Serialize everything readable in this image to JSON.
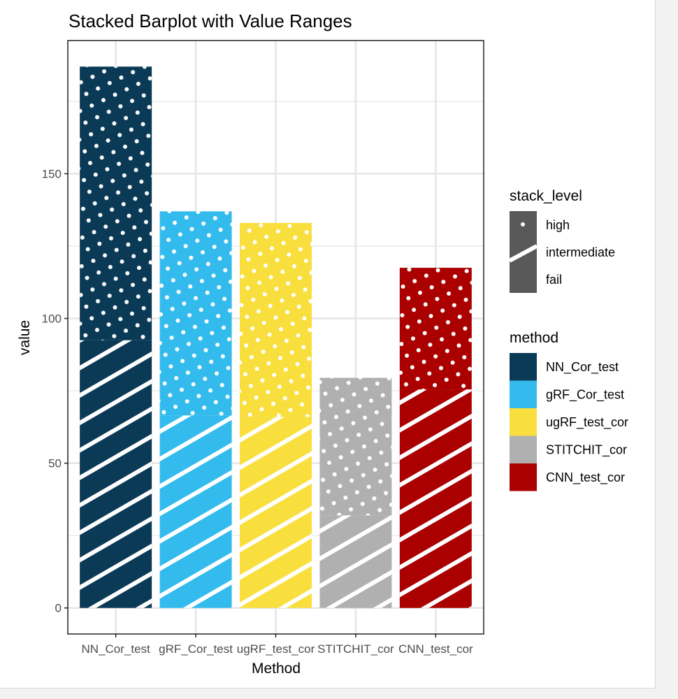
{
  "chart_data": {
    "type": "bar",
    "stacked": true,
    "title": "Stacked Barplot with Value Ranges",
    "xlabel": "Method",
    "ylabel": "value",
    "categories": [
      "NN_Cor_test",
      "gRF_Cor_test",
      "ugRF_test_cor",
      "STITCHIT_cor",
      "CNN_test_cor"
    ],
    "category_colors": [
      "#0B3A57",
      "#33BBEE",
      "#F9DF3D",
      "#B0B0B0",
      "#AA0000"
    ],
    "series": [
      {
        "name": "fail",
        "pattern": "none",
        "values": [
          0,
          0,
          0,
          0,
          0
        ]
      },
      {
        "name": "intermediate",
        "pattern": "stripe",
        "values": [
          92.5,
          66.5,
          66,
          32,
          75.5
        ]
      },
      {
        "name": "high",
        "pattern": "circle",
        "values": [
          94.5,
          70.5,
          67,
          47.5,
          42
        ]
      }
    ],
    "ylim": [
      -9,
      196
    ],
    "yticks": [
      0,
      50,
      100,
      150
    ],
    "grid": true,
    "legend_placement": "right",
    "legends": [
      {
        "title": "stack_level",
        "entries": [
          "high",
          "intermediate",
          "fail"
        ]
      },
      {
        "title": "method",
        "entries": [
          "NN_Cor_test",
          "gRF_Cor_test",
          "ugRF_test_cor",
          "STITCHIT_cor",
          "CNN_test_cor"
        ]
      }
    ]
  }
}
